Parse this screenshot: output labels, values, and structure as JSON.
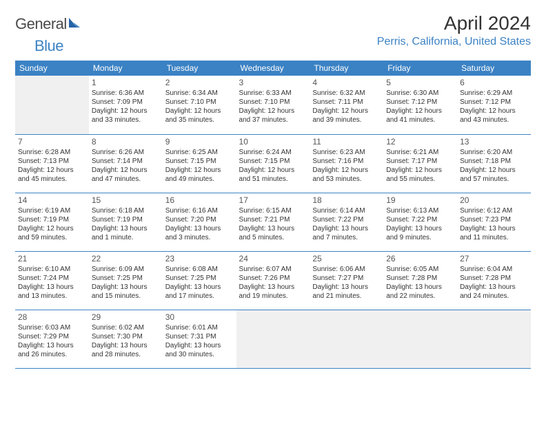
{
  "logo": {
    "general": "General",
    "blue": "Blue"
  },
  "title": "April 2024",
  "location": "Perris, California, United States",
  "colors": {
    "header_bg": "#3b82c4",
    "header_text": "#ffffff",
    "rule": "#3b82c4",
    "bg": "#ffffff",
    "empty_bg": "#f0f0f0",
    "title_color": "#333333",
    "location_color": "#3b82c4"
  },
  "weekdays": [
    "Sunday",
    "Monday",
    "Tuesday",
    "Wednesday",
    "Thursday",
    "Friday",
    "Saturday"
  ],
  "weeks": [
    [
      {
        "empty": true
      },
      {
        "n": "1",
        "sunrise": "Sunrise: 6:36 AM",
        "sunset": "Sunset: 7:09 PM",
        "day1": "Daylight: 12 hours",
        "day2": "and 33 minutes."
      },
      {
        "n": "2",
        "sunrise": "Sunrise: 6:34 AM",
        "sunset": "Sunset: 7:10 PM",
        "day1": "Daylight: 12 hours",
        "day2": "and 35 minutes."
      },
      {
        "n": "3",
        "sunrise": "Sunrise: 6:33 AM",
        "sunset": "Sunset: 7:10 PM",
        "day1": "Daylight: 12 hours",
        "day2": "and 37 minutes."
      },
      {
        "n": "4",
        "sunrise": "Sunrise: 6:32 AM",
        "sunset": "Sunset: 7:11 PM",
        "day1": "Daylight: 12 hours",
        "day2": "and 39 minutes."
      },
      {
        "n": "5",
        "sunrise": "Sunrise: 6:30 AM",
        "sunset": "Sunset: 7:12 PM",
        "day1": "Daylight: 12 hours",
        "day2": "and 41 minutes."
      },
      {
        "n": "6",
        "sunrise": "Sunrise: 6:29 AM",
        "sunset": "Sunset: 7:12 PM",
        "day1": "Daylight: 12 hours",
        "day2": "and 43 minutes."
      }
    ],
    [
      {
        "n": "7",
        "sunrise": "Sunrise: 6:28 AM",
        "sunset": "Sunset: 7:13 PM",
        "day1": "Daylight: 12 hours",
        "day2": "and 45 minutes."
      },
      {
        "n": "8",
        "sunrise": "Sunrise: 6:26 AM",
        "sunset": "Sunset: 7:14 PM",
        "day1": "Daylight: 12 hours",
        "day2": "and 47 minutes."
      },
      {
        "n": "9",
        "sunrise": "Sunrise: 6:25 AM",
        "sunset": "Sunset: 7:15 PM",
        "day1": "Daylight: 12 hours",
        "day2": "and 49 minutes."
      },
      {
        "n": "10",
        "sunrise": "Sunrise: 6:24 AM",
        "sunset": "Sunset: 7:15 PM",
        "day1": "Daylight: 12 hours",
        "day2": "and 51 minutes."
      },
      {
        "n": "11",
        "sunrise": "Sunrise: 6:23 AM",
        "sunset": "Sunset: 7:16 PM",
        "day1": "Daylight: 12 hours",
        "day2": "and 53 minutes."
      },
      {
        "n": "12",
        "sunrise": "Sunrise: 6:21 AM",
        "sunset": "Sunset: 7:17 PM",
        "day1": "Daylight: 12 hours",
        "day2": "and 55 minutes."
      },
      {
        "n": "13",
        "sunrise": "Sunrise: 6:20 AM",
        "sunset": "Sunset: 7:18 PM",
        "day1": "Daylight: 12 hours",
        "day2": "and 57 minutes."
      }
    ],
    [
      {
        "n": "14",
        "sunrise": "Sunrise: 6:19 AM",
        "sunset": "Sunset: 7:19 PM",
        "day1": "Daylight: 12 hours",
        "day2": "and 59 minutes."
      },
      {
        "n": "15",
        "sunrise": "Sunrise: 6:18 AM",
        "sunset": "Sunset: 7:19 PM",
        "day1": "Daylight: 13 hours",
        "day2": "and 1 minute."
      },
      {
        "n": "16",
        "sunrise": "Sunrise: 6:16 AM",
        "sunset": "Sunset: 7:20 PM",
        "day1": "Daylight: 13 hours",
        "day2": "and 3 minutes."
      },
      {
        "n": "17",
        "sunrise": "Sunrise: 6:15 AM",
        "sunset": "Sunset: 7:21 PM",
        "day1": "Daylight: 13 hours",
        "day2": "and 5 minutes."
      },
      {
        "n": "18",
        "sunrise": "Sunrise: 6:14 AM",
        "sunset": "Sunset: 7:22 PM",
        "day1": "Daylight: 13 hours",
        "day2": "and 7 minutes."
      },
      {
        "n": "19",
        "sunrise": "Sunrise: 6:13 AM",
        "sunset": "Sunset: 7:22 PM",
        "day1": "Daylight: 13 hours",
        "day2": "and 9 minutes."
      },
      {
        "n": "20",
        "sunrise": "Sunrise: 6:12 AM",
        "sunset": "Sunset: 7:23 PM",
        "day1": "Daylight: 13 hours",
        "day2": "and 11 minutes."
      }
    ],
    [
      {
        "n": "21",
        "sunrise": "Sunrise: 6:10 AM",
        "sunset": "Sunset: 7:24 PM",
        "day1": "Daylight: 13 hours",
        "day2": "and 13 minutes."
      },
      {
        "n": "22",
        "sunrise": "Sunrise: 6:09 AM",
        "sunset": "Sunset: 7:25 PM",
        "day1": "Daylight: 13 hours",
        "day2": "and 15 minutes."
      },
      {
        "n": "23",
        "sunrise": "Sunrise: 6:08 AM",
        "sunset": "Sunset: 7:25 PM",
        "day1": "Daylight: 13 hours",
        "day2": "and 17 minutes."
      },
      {
        "n": "24",
        "sunrise": "Sunrise: 6:07 AM",
        "sunset": "Sunset: 7:26 PM",
        "day1": "Daylight: 13 hours",
        "day2": "and 19 minutes."
      },
      {
        "n": "25",
        "sunrise": "Sunrise: 6:06 AM",
        "sunset": "Sunset: 7:27 PM",
        "day1": "Daylight: 13 hours",
        "day2": "and 21 minutes."
      },
      {
        "n": "26",
        "sunrise": "Sunrise: 6:05 AM",
        "sunset": "Sunset: 7:28 PM",
        "day1": "Daylight: 13 hours",
        "day2": "and 22 minutes."
      },
      {
        "n": "27",
        "sunrise": "Sunrise: 6:04 AM",
        "sunset": "Sunset: 7:28 PM",
        "day1": "Daylight: 13 hours",
        "day2": "and 24 minutes."
      }
    ],
    [
      {
        "n": "28",
        "sunrise": "Sunrise: 6:03 AM",
        "sunset": "Sunset: 7:29 PM",
        "day1": "Daylight: 13 hours",
        "day2": "and 26 minutes."
      },
      {
        "n": "29",
        "sunrise": "Sunrise: 6:02 AM",
        "sunset": "Sunset: 7:30 PM",
        "day1": "Daylight: 13 hours",
        "day2": "and 28 minutes."
      },
      {
        "n": "30",
        "sunrise": "Sunrise: 6:01 AM",
        "sunset": "Sunset: 7:31 PM",
        "day1": "Daylight: 13 hours",
        "day2": "and 30 minutes."
      },
      {
        "empty": true
      },
      {
        "empty": true
      },
      {
        "empty": true
      },
      {
        "empty": true
      }
    ]
  ]
}
